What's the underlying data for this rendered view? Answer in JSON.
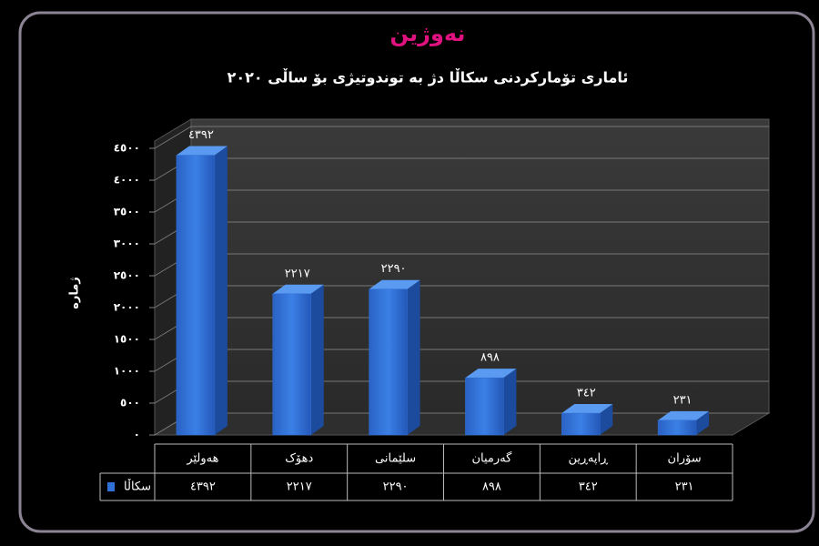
{
  "logo": "نەوژین",
  "chart_data": {
    "type": "bar",
    "title": "ئاماری تۆمارکردنی سکاڵا دژ بە توندوتیژی بۆ ساڵی ٢٠٢٠",
    "y_label": "ژمارە",
    "categories": [
      "هەولێر",
      "دهۆک",
      "سلێمانی",
      "گەرمیان",
      "ڕاپەڕین",
      "سۆران"
    ],
    "series": [
      {
        "name": "سکاڵا",
        "color": "#2f6fd6",
        "values": [
          4392,
          2217,
          2290,
          898,
          342,
          231
        ],
        "value_labels": [
          "٤٣٩٢",
          "٢٢١٧",
          "٢٢٩٠",
          "٨٩٨",
          "٣٤٢",
          "٢٣١"
        ]
      }
    ],
    "ylim": [
      0,
      4500
    ],
    "yticks": [
      {
        "value": 0,
        "label": "٠"
      },
      {
        "value": 500,
        "label": "٥٠٠"
      },
      {
        "value": 1000,
        "label": "١٠٠٠"
      },
      {
        "value": 1500,
        "label": "١٥٠٠"
      },
      {
        "value": 2000,
        "label": "٢٠٠٠"
      },
      {
        "value": 2500,
        "label": "٢٥٠٠"
      },
      {
        "value": 3000,
        "label": "٣٠٠٠"
      },
      {
        "value": 3500,
        "label": "٣٥٠٠"
      },
      {
        "value": 4000,
        "label": "٤٠٠٠"
      },
      {
        "value": 4500,
        "label": "٤٥٠٠"
      }
    ],
    "grid": true
  }
}
